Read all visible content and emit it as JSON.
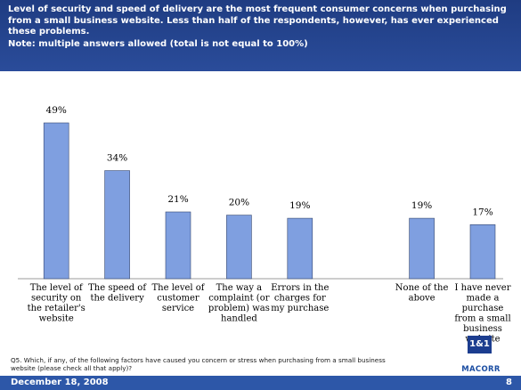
{
  "header": {
    "headline": "Level of security and speed of delivery are the most frequent consumer concerns when purchasing from a small business website.  Less than half of the respondents, however, has ever experienced these problems.",
    "note": "Note: multiple answers allowed (total is not equal to 100%)"
  },
  "chart_data": {
    "type": "bar",
    "categories": [
      [
        "The level of",
        "security on",
        "the retailer's",
        "website"
      ],
      [
        "The speed of",
        "the delivery"
      ],
      [
        "The level of",
        "customer",
        "service"
      ],
      [
        "The way a",
        "complaint (or",
        "problem) was",
        "handled"
      ],
      [
        "Errors in the",
        "charges for",
        "my purchase"
      ],
      [],
      [
        "None of the",
        "above"
      ],
      [
        "I have never",
        "made a",
        "purchase",
        "from a small",
        "business",
        "website"
      ]
    ],
    "values": [
      49,
      34,
      21,
      20,
      19,
      null,
      19,
      17
    ],
    "value_labels": [
      "49%",
      "34%",
      "21%",
      "20%",
      "19%",
      "",
      "19%",
      "17%"
    ],
    "ylim": [
      0,
      55
    ],
    "bar_color": "#7f9fe0"
  },
  "footnote": "Q5. Which, if any, of the following factors have caused you concern or stress when purchasing from a small business website (please check all that apply)?",
  "footer": {
    "date": "December 18, 2008",
    "page": "8"
  },
  "logos": {
    "one_and_one": "1&1",
    "macorr": "MACORR"
  }
}
